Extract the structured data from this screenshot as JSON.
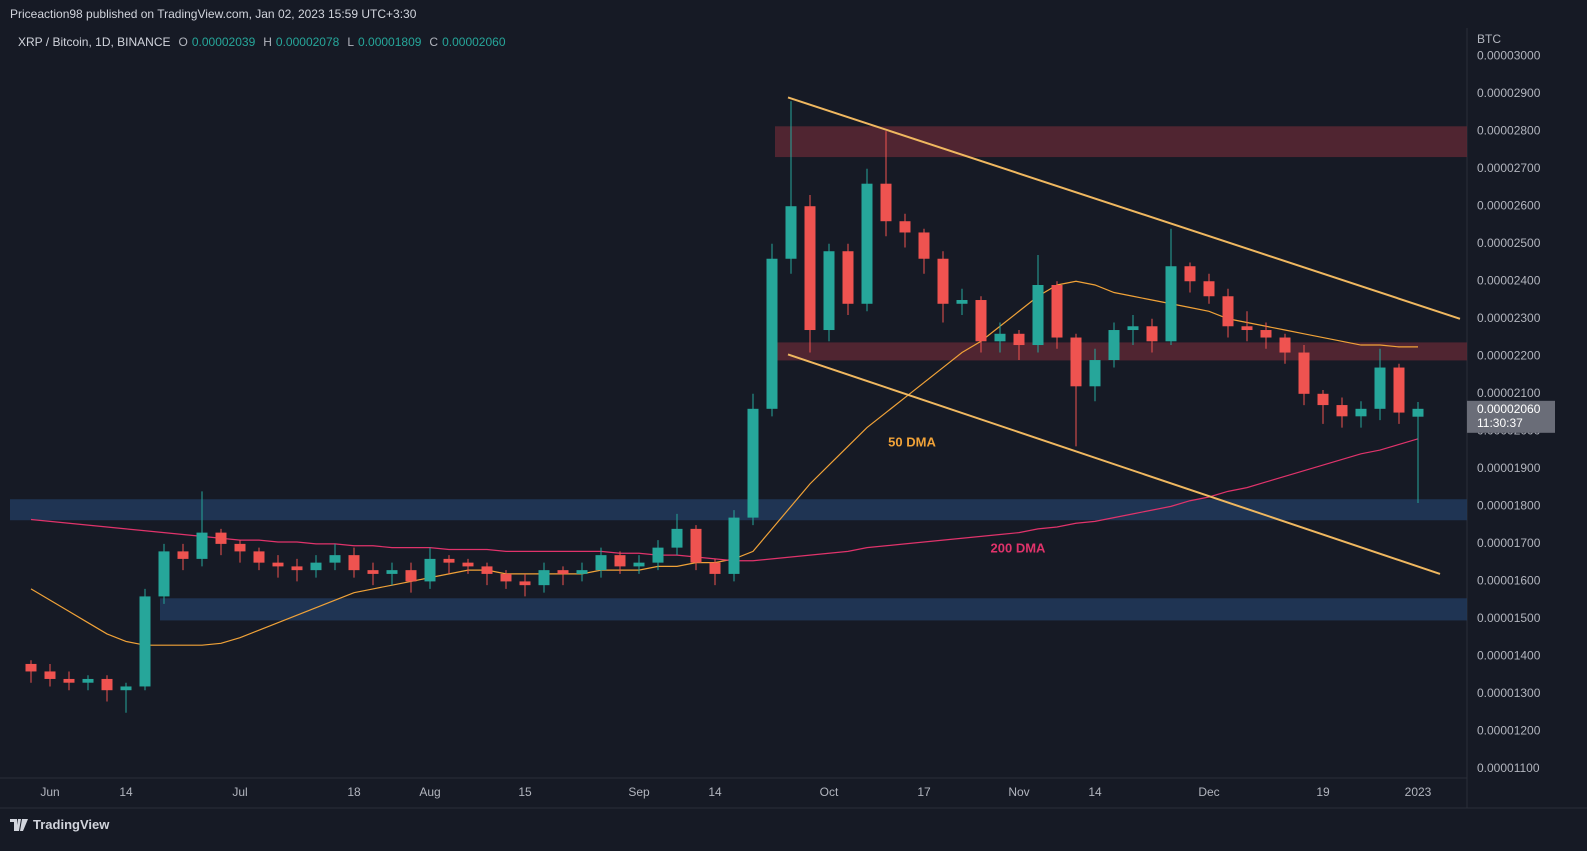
{
  "header": {
    "published": "Priceaction98 published on TradingView.com, Jan 02, 2023 15:59 UTC+3:30",
    "ohlc": [
      {
        "key": "O",
        "label": "0.00002039"
      },
      {
        "key": "H",
        "label": "0.00002078"
      },
      {
        "key": "L",
        "label": "0.00001809"
      },
      {
        "key": "C",
        "label": "0.00002060"
      }
    ]
  },
  "price_tag": {
    "price": "0.00002060",
    "countdown": "11:30:37"
  },
  "footer": {
    "brand": "TradingView"
  },
  "chart_data": {
    "type": "candlestick",
    "title": "XRP / Bitcoin, 1D, BINANCE",
    "y_axis_label": "BTC",
    "up_color": "#26a69a",
    "down_color": "#ef5350",
    "grid": false,
    "categories": [
      null,
      "Jun",
      null,
      null,
      null,
      "14",
      null,
      null,
      null,
      null,
      null,
      "Jul",
      null,
      null,
      null,
      null,
      null,
      "18",
      null,
      null,
      null,
      "Aug",
      null,
      null,
      null,
      null,
      "15",
      null,
      null,
      null,
      null,
      null,
      "Sep",
      null,
      null,
      null,
      "14",
      null,
      null,
      null,
      null,
      null,
      "Oct",
      null,
      null,
      null,
      null,
      "17",
      null,
      null,
      null,
      null,
      "Nov",
      null,
      null,
      null,
      "14",
      null,
      null,
      null,
      null,
      null,
      "Dec",
      null,
      null,
      null,
      null,
      null,
      "19",
      null,
      null,
      null,
      null,
      "2023"
    ],
    "open": [
      1.38e-05,
      1.36e-05,
      1.34e-05,
      1.33e-05,
      1.34e-05,
      1.31e-05,
      1.32e-05,
      1.56e-05,
      1.68e-05,
      1.66e-05,
      1.73e-05,
      1.7e-05,
      1.68e-05,
      1.65e-05,
      1.64e-05,
      1.63e-05,
      1.65e-05,
      1.67e-05,
      1.63e-05,
      1.62e-05,
      1.63e-05,
      1.6e-05,
      1.66e-05,
      1.65e-05,
      1.64e-05,
      1.62e-05,
      1.6e-05,
      1.59e-05,
      1.63e-05,
      1.62e-05,
      1.63e-05,
      1.67e-05,
      1.64e-05,
      1.65e-05,
      1.69e-05,
      1.74e-05,
      1.65e-05,
      1.62e-05,
      1.77e-05,
      2.06e-05,
      2.46e-05,
      2.6e-05,
      2.27e-05,
      2.48e-05,
      2.34e-05,
      2.66e-05,
      2.56e-05,
      2.53e-05,
      2.46e-05,
      2.34e-05,
      2.35e-05,
      2.24e-05,
      2.26e-05,
      2.23e-05,
      2.39e-05,
      2.25e-05,
      2.12e-05,
      2.19e-05,
      2.27e-05,
      2.28e-05,
      2.24e-05,
      2.44e-05,
      2.4e-05,
      2.36e-05,
      2.28e-05,
      2.27e-05,
      2.25e-05,
      2.21e-05,
      2.1e-05,
      2.07e-05,
      2.04e-05,
      2.06e-05,
      2.17e-05,
      2.039e-05
    ],
    "high": [
      1.39e-05,
      1.38e-05,
      1.36e-05,
      1.35e-05,
      1.35e-05,
      1.33e-05,
      1.58e-05,
      1.7e-05,
      1.7e-05,
      1.84e-05,
      1.74e-05,
      1.71e-05,
      1.69e-05,
      1.67e-05,
      1.66e-05,
      1.67e-05,
      1.7e-05,
      1.69e-05,
      1.65e-05,
      1.65e-05,
      1.65e-05,
      1.69e-05,
      1.67e-05,
      1.66e-05,
      1.65e-05,
      1.63e-05,
      1.62e-05,
      1.65e-05,
      1.64e-05,
      1.65e-05,
      1.69e-05,
      1.68e-05,
      1.67e-05,
      1.71e-05,
      1.78e-05,
      1.75e-05,
      1.66e-05,
      1.79e-05,
      2.1e-05,
      2.5e-05,
      2.88e-05,
      2.63e-05,
      2.5e-05,
      2.5e-05,
      2.7e-05,
      2.8e-05,
      2.58e-05,
      2.54e-05,
      2.48e-05,
      2.38e-05,
      2.36e-05,
      2.29e-05,
      2.27e-05,
      2.47e-05,
      2.4e-05,
      2.26e-05,
      2.22e-05,
      2.29e-05,
      2.31e-05,
      2.3e-05,
      2.54e-05,
      2.45e-05,
      2.42e-05,
      2.38e-05,
      2.32e-05,
      2.29e-05,
      2.26e-05,
      2.23e-05,
      2.11e-05,
      2.09e-05,
      2.08e-05,
      2.22e-05,
      2.18e-05,
      2.078e-05
    ],
    "low": [
      1.33e-05,
      1.32e-05,
      1.31e-05,
      1.31e-05,
      1.28e-05,
      1.25e-05,
      1.31e-05,
      1.54e-05,
      1.63e-05,
      1.64e-05,
      1.67e-05,
      1.65e-05,
      1.63e-05,
      1.61e-05,
      1.6e-05,
      1.61e-05,
      1.63e-05,
      1.61e-05,
      1.59e-05,
      1.59e-05,
      1.57e-05,
      1.58e-05,
      1.62e-05,
      1.62e-05,
      1.59e-05,
      1.58e-05,
      1.56e-05,
      1.57e-05,
      1.59e-05,
      1.6e-05,
      1.61e-05,
      1.62e-05,
      1.62e-05,
      1.63e-05,
      1.67e-05,
      1.63e-05,
      1.59e-05,
      1.6e-05,
      1.75e-05,
      2.04e-05,
      2.42e-05,
      2.21e-05,
      2.24e-05,
      2.31e-05,
      2.32e-05,
      2.52e-05,
      2.49e-05,
      2.42e-05,
      2.29e-05,
      2.31e-05,
      2.21e-05,
      2.21e-05,
      2.19e-05,
      2.21e-05,
      2.22e-05,
      1.96e-05,
      2.08e-05,
      2.17e-05,
      2.23e-05,
      2.21e-05,
      2.23e-05,
      2.37e-05,
      2.34e-05,
      2.25e-05,
      2.24e-05,
      2.22e-05,
      2.18e-05,
      2.07e-05,
      2.02e-05,
      2.01e-05,
      2.01e-05,
      2.03e-05,
      2.02e-05,
      1.809e-05
    ],
    "close": [
      1.36e-05,
      1.34e-05,
      1.33e-05,
      1.34e-05,
      1.31e-05,
      1.32e-05,
      1.56e-05,
      1.68e-05,
      1.66e-05,
      1.73e-05,
      1.7e-05,
      1.68e-05,
      1.65e-05,
      1.64e-05,
      1.63e-05,
      1.65e-05,
      1.67e-05,
      1.63e-05,
      1.62e-05,
      1.63e-05,
      1.6e-05,
      1.66e-05,
      1.65e-05,
      1.64e-05,
      1.62e-05,
      1.6e-05,
      1.59e-05,
      1.63e-05,
      1.62e-05,
      1.63e-05,
      1.67e-05,
      1.64e-05,
      1.65e-05,
      1.69e-05,
      1.74e-05,
      1.65e-05,
      1.62e-05,
      1.77e-05,
      2.06e-05,
      2.46e-05,
      2.6e-05,
      2.27e-05,
      2.48e-05,
      2.34e-05,
      2.66e-05,
      2.56e-05,
      2.53e-05,
      2.46e-05,
      2.34e-05,
      2.35e-05,
      2.24e-05,
      2.26e-05,
      2.23e-05,
      2.39e-05,
      2.25e-05,
      2.12e-05,
      2.19e-05,
      2.27e-05,
      2.28e-05,
      2.24e-05,
      2.44e-05,
      2.4e-05,
      2.36e-05,
      2.28e-05,
      2.27e-05,
      2.25e-05,
      2.21e-05,
      2.1e-05,
      2.07e-05,
      2.04e-05,
      2.06e-05,
      2.17e-05,
      2.05e-05,
      2.06e-05
    ],
    "series": [
      {
        "name": "50 DMA",
        "color": "#f0a238",
        "values": [
          1.58e-05,
          1.55e-05,
          1.52e-05,
          1.49e-05,
          1.46e-05,
          1.44e-05,
          1.43e-05,
          1.43e-05,
          1.43e-05,
          1.43e-05,
          1.435e-05,
          1.45e-05,
          1.47e-05,
          1.49e-05,
          1.51e-05,
          1.53e-05,
          1.55e-05,
          1.57e-05,
          1.58e-05,
          1.59e-05,
          1.6e-05,
          1.61e-05,
          1.62e-05,
          1.63e-05,
          1.63e-05,
          1.62e-05,
          1.62e-05,
          1.62e-05,
          1.62e-05,
          1.62e-05,
          1.63e-05,
          1.63e-05,
          1.63e-05,
          1.64e-05,
          1.64e-05,
          1.65e-05,
          1.65e-05,
          1.66e-05,
          1.68e-05,
          1.74e-05,
          1.8e-05,
          1.86e-05,
          1.91e-05,
          1.96e-05,
          2.01e-05,
          2.05e-05,
          2.09e-05,
          2.13e-05,
          2.17e-05,
          2.21e-05,
          2.24e-05,
          2.28e-05,
          2.32e-05,
          2.36e-05,
          2.39e-05,
          2.4e-05,
          2.39e-05,
          2.37e-05,
          2.36e-05,
          2.35e-05,
          2.34e-05,
          2.33e-05,
          2.32e-05,
          2.3e-05,
          2.29e-05,
          2.28e-05,
          2.27e-05,
          2.26e-05,
          2.25e-05,
          2.24e-05,
          2.23e-05,
          2.23e-05,
          2.225e-05,
          2.225e-05
        ]
      },
      {
        "name": "200 DMA",
        "color": "#e0336b",
        "values": [
          1.765e-05,
          1.76e-05,
          1.755e-05,
          1.75e-05,
          1.745e-05,
          1.74e-05,
          1.735e-05,
          1.73e-05,
          1.725e-05,
          1.72e-05,
          1.715e-05,
          1.71e-05,
          1.71e-05,
          1.705e-05,
          1.705e-05,
          1.7e-05,
          1.7e-05,
          1.695e-05,
          1.695e-05,
          1.69e-05,
          1.69e-05,
          1.69e-05,
          1.685e-05,
          1.685e-05,
          1.685e-05,
          1.68e-05,
          1.68e-05,
          1.68e-05,
          1.68e-05,
          1.68e-05,
          1.68e-05,
          1.675e-05,
          1.675e-05,
          1.67e-05,
          1.67e-05,
          1.665e-05,
          1.66e-05,
          1.655e-05,
          1.655e-05,
          1.66e-05,
          1.665e-05,
          1.67e-05,
          1.675e-05,
          1.68e-05,
          1.69e-05,
          1.695e-05,
          1.7e-05,
          1.705e-05,
          1.71e-05,
          1.715e-05,
          1.72e-05,
          1.725e-05,
          1.73e-05,
          1.74e-05,
          1.745e-05,
          1.755e-05,
          1.76e-05,
          1.77e-05,
          1.78e-05,
          1.79e-05,
          1.8e-05,
          1.815e-05,
          1.825e-05,
          1.84e-05,
          1.85e-05,
          1.865e-05,
          1.88e-05,
          1.895e-05,
          1.91e-05,
          1.925e-05,
          1.94e-05,
          1.95e-05,
          1.965e-05,
          1.98e-05
        ]
      }
    ],
    "zones": [
      {
        "low": 2.731e-05,
        "high": 2.813e-05,
        "color": "#5a2834"
      },
      {
        "low": 2.189e-05,
        "high": 2.237e-05,
        "color": "#5a2834"
      },
      {
        "low": 1.763e-05,
        "high": 1.819e-05,
        "color": "#213a5c"
      },
      {
        "low": 1.496e-05,
        "high": 1.555e-05,
        "color": "#213a5c"
      }
    ],
    "trendlines": [
      {
        "from": 2.89e-05,
        "to": 2.3e-05,
        "color": "#f0b860"
      },
      {
        "from": 2.205e-05,
        "to": 1.62e-05,
        "color": "#f0b860"
      }
    ],
    "ylim": [
      1.076e-05,
      3.075e-05
    ],
    "yticks": [
      {
        "value": 3e-05,
        "label": "0.00003000"
      },
      {
        "value": 2.9e-05,
        "label": "0.00002900"
      },
      {
        "value": 2.8e-05,
        "label": "0.00002800"
      },
      {
        "value": 2.7e-05,
        "label": "0.00002700"
      },
      {
        "value": 2.6e-05,
        "label": "0.00002600"
      },
      {
        "value": 2.5e-05,
        "label": "0.00002500"
      },
      {
        "value": 2.4e-05,
        "label": "0.00002400"
      },
      {
        "value": 2.3e-05,
        "label": "0.00002300"
      },
      {
        "value": 2.2e-05,
        "label": "0.00002200"
      },
      {
        "value": 2.1e-05,
        "label": "0.00002100"
      },
      {
        "value": 2e-05,
        "label": "0.00002000"
      },
      {
        "value": 1.9e-05,
        "label": "0.00001900"
      },
      {
        "value": 1.8e-05,
        "label": "0.00001800"
      },
      {
        "value": 1.7e-05,
        "label": "0.00001700"
      },
      {
        "value": 1.6e-05,
        "label": "0.00001600"
      },
      {
        "value": 1.5e-05,
        "label": "0.00001500"
      },
      {
        "value": 1.4e-05,
        "label": "0.00001400"
      },
      {
        "value": 1.3e-05,
        "label": "0.00001300"
      },
      {
        "value": 1.2e-05,
        "label": "0.00001200"
      },
      {
        "value": 1.1e-05,
        "label": "0.00001100"
      }
    ]
  }
}
